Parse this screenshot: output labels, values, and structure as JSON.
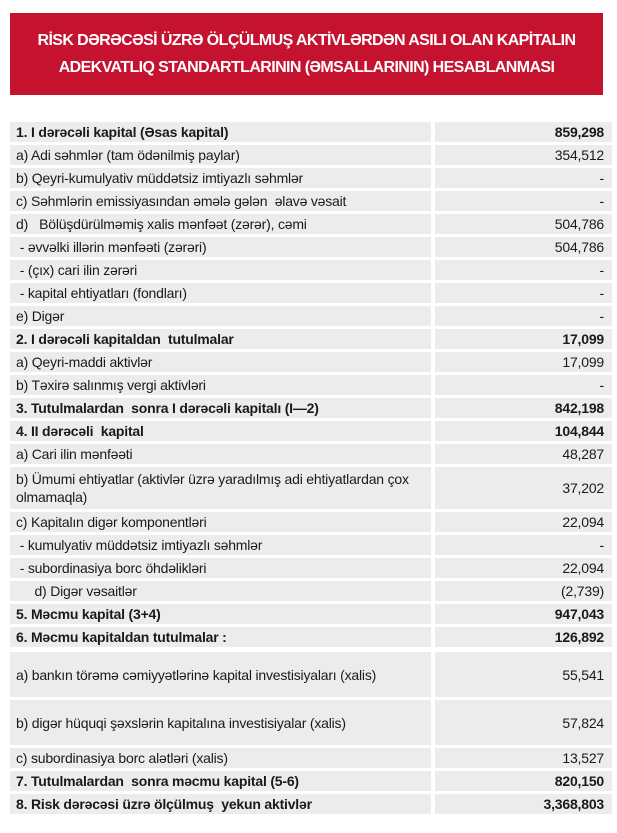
{
  "colors": {
    "banner_bg": "#C5122F",
    "banner_text": "#FFFFFF",
    "row_bg": "#ECECEC",
    "text": "#1A1A1A"
  },
  "title": {
    "line1": "RİSK DƏRƏCƏSİ ÜZRƏ ÖLÇÜLMUŞ AKTİVLƏRDƏN ASILI OLAN KAPİTALIN",
    "line2": "ADEKVATLIQ STANDARTLARININ (ƏMSALLARININ) HESABLANMASI"
  },
  "table": {
    "rows": [
      {
        "label": "1. I dərəcəli kapital (Əsas kapital)",
        "value": "859,298",
        "bold": true
      },
      {
        "label": "a) Adi səhmlər (tam ödənilmiş paylar)",
        "value": "354,512"
      },
      {
        "label": "b) Qeyri-kumulyativ müddətsiz imtiyazlı səhmlər",
        "value": "-"
      },
      {
        "label": "c) Səhmlərin emissiyasından əmələ gələn  əlavə vəsait",
        "value": "-"
      },
      {
        "label": "d)   Bölüşdürülməmiş xalis mənfəət (zərər), cəmi",
        "value": "504,786"
      },
      {
        "label": " - əvvəlki illərin mənfəəti (zərəri)",
        "value": "504,786"
      },
      {
        "label": " - (çıx) cari ilin zərəri",
        "value": "-"
      },
      {
        "label": " - kapital ehtiyatları (fondları)",
        "value": "-"
      },
      {
        "label": "e) Digər",
        "value": "-"
      },
      {
        "label": "2. I dərəcəli kapitaldan  tutulmalar",
        "value": "17,099",
        "bold": true
      },
      {
        "label": "a) Qeyri-maddi aktivlər",
        "value": "17,099"
      },
      {
        "label": "b) Təxirə salınmış vergi aktivləri",
        "value": "-"
      },
      {
        "label": "3. Tutulmalardan  sonra I dərəcəli kapitalı (I—2)",
        "value": "842,198",
        "bold": true
      },
      {
        "label": "4. II dərəcəli  kapital",
        "value": "104,844",
        "bold": true
      },
      {
        "label": "a) Cari ilin mənfəəti",
        "value": "48,287"
      },
      {
        "label": "b) Ümumi ehtiyatlar (aktivlər üzrə yaradılmış adi ehtiyatlardan çox olmamaqla)",
        "value": "37,202",
        "size": "twoline"
      },
      {
        "label": "c) Kapitalın digər komponentləri",
        "value": "22,094"
      },
      {
        "label": " - kumulyativ müddətsiz imtiyazlı səhmlər",
        "value": "-"
      },
      {
        "label": " - subordinasiya borc öhdəlikləri",
        "value": "22,094"
      },
      {
        "label": "     d) Digər vəsaitlər",
        "value": "(2,739)"
      },
      {
        "label": "5. Məcmu kapital (3+4)",
        "value": "947,043",
        "bold": true
      },
      {
        "label": "6. Məcmu kapitaldan tutulmalar :",
        "value": "126,892",
        "bold": true
      },
      {
        "label": "a) bankın törəmə cəmiyyətlərinə kapital investisiyaları (xalis)",
        "value": "55,541",
        "size": "tall",
        "gap_top": true
      },
      {
        "label": "b) digər hüquqi şəxslərin kapitalına investisiyalar (xalis)",
        "value": "57,824",
        "size": "tall"
      },
      {
        "label": "c) subordinasiya borc alətləri (xalis)",
        "value": "13,527"
      },
      {
        "label": "7. Tutulmalardan  sonra məcmu kapital (5-6)",
        "value": "820,150",
        "bold": true
      },
      {
        "label": "8. Risk dərəcəsi üzrə ölçülmuş  yekun aktivlər",
        "value": "3,368,803",
        "bold": true
      }
    ]
  }
}
